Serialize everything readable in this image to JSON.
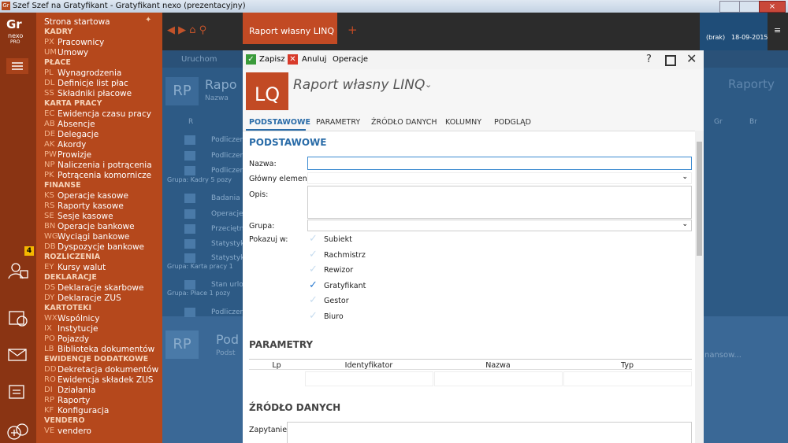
{
  "window": {
    "title": "Szef Szef na Gratyfikant - Gratyfikant nexo (prezentacyjny)"
  },
  "logo": {
    "code": "Gr",
    "brand": "nexo",
    "edition": "PRO"
  },
  "notification_count": "4",
  "menu": {
    "home": "Strona startowa",
    "groups": [
      {
        "heading": "KADRY",
        "items": [
          {
            "code": "PX",
            "label": "Pracownicy"
          },
          {
            "code": "UM",
            "label": "Umowy"
          }
        ]
      },
      {
        "heading": "PŁACE",
        "items": [
          {
            "code": "PL",
            "label": "Wynagrodzenia"
          },
          {
            "code": "DL",
            "label": "Definicje list płac"
          },
          {
            "code": "SS",
            "label": "Składniki płacowe"
          }
        ]
      },
      {
        "heading": "KARTA PRACY",
        "items": [
          {
            "code": "EC",
            "label": "Ewidencja czasu pracy"
          },
          {
            "code": "AB",
            "label": "Absencje"
          },
          {
            "code": "DE",
            "label": "Delegacje"
          },
          {
            "code": "AK",
            "label": "Akordy"
          },
          {
            "code": "PW",
            "label": "Prowizje"
          },
          {
            "code": "NP",
            "label": "Naliczenia i potrącenia"
          },
          {
            "code": "PK",
            "label": "Potrącenia komornicze"
          }
        ]
      },
      {
        "heading": "FINANSE",
        "items": [
          {
            "code": "KS",
            "label": "Operacje kasowe"
          },
          {
            "code": "RS",
            "label": "Raporty kasowe"
          },
          {
            "code": "SE",
            "label": "Sesje kasowe"
          },
          {
            "code": "BN",
            "label": "Operacje bankowe"
          },
          {
            "code": "WG",
            "label": "Wyciągi bankowe"
          },
          {
            "code": "DB",
            "label": "Dyspozycje bankowe"
          }
        ]
      },
      {
        "heading": "ROZLICZENIA",
        "items": [
          {
            "code": "EY",
            "label": "Kursy walut"
          }
        ]
      },
      {
        "heading": "DEKLARACJE",
        "items": [
          {
            "code": "DS",
            "label": "Deklaracje skarbowe"
          },
          {
            "code": "DY",
            "label": "Deklaracje ZUS"
          }
        ]
      },
      {
        "heading": "KARTOTEKI",
        "items": [
          {
            "code": "WX",
            "label": "Wspólnicy"
          },
          {
            "code": "IX",
            "label": "Instytucje"
          },
          {
            "code": "PO",
            "label": "Pojazdy"
          },
          {
            "code": "LB",
            "label": "Biblioteka dokumentów"
          }
        ]
      },
      {
        "heading": "EWIDENCJE DODATKOWE",
        "items": [
          {
            "code": "DD",
            "label": "Dekretacja dokumentów"
          },
          {
            "code": "RO",
            "label": "Ewidencja składek ZUS"
          },
          {
            "code": "DI",
            "label": "Działania"
          },
          {
            "code": "RP",
            "label": "Raporty"
          },
          {
            "code": "KF",
            "label": "Konfiguracja"
          }
        ]
      },
      {
        "heading": "VENDERO",
        "items": [
          {
            "code": "VE",
            "label": "vendero"
          }
        ]
      }
    ]
  },
  "tab": "Raport własny LINQ",
  "status": {
    "user": "(brak)",
    "date": "18-09-2015"
  },
  "background": {
    "run": "Uruchom",
    "badge": "RP",
    "title": "Rapo",
    "subtitle": "Nazwa",
    "right_title": "Raporty",
    "column": "R",
    "columns_right": [
      "Gr",
      "Br"
    ],
    "rows": [
      "Podliczen",
      "Podliczen",
      "Podliczen",
      "Grupa: Kadry 5 pozy",
      "Badania p",
      "Operacje",
      "Przeciętn",
      "Statystyk",
      "Statystyk",
      "Grupa: Karta pracy 1",
      "Stan urlop",
      "Grupa: Płace 1 pozy",
      "Podliczen"
    ],
    "lower_badge": "RP",
    "lower_title": "Pod",
    "lower_subtitle": "Podst",
    "lower_right": "nansow..."
  },
  "dialog": {
    "toolbar": {
      "save": "Zapisz",
      "cancel": "Anuluj",
      "operations": "Operacje",
      "help": "?"
    },
    "badge": "LQ",
    "title": "Raport własny LINQ",
    "tabs": [
      "PODSTAWOWE",
      "PARAMETRY",
      "ŹRÓDŁO DANYCH",
      "KOLUMNY",
      "PODGLĄD"
    ],
    "section_basic": "PODSTAWOWE",
    "fields": {
      "name": "Nazwa:",
      "main_element": "Główny element:",
      "description": "Opis:",
      "group": "Grupa:",
      "show_in": "Pokazuj w:"
    },
    "show_in": [
      {
        "label": "Subiekt",
        "checked": false
      },
      {
        "label": "Rachmistrz",
        "checked": false
      },
      {
        "label": "Rewizor",
        "checked": false
      },
      {
        "label": "Gratyfikant",
        "checked": true
      },
      {
        "label": "Gestor",
        "checked": false
      },
      {
        "label": "Biuro",
        "checked": false
      }
    ],
    "section_params": "PARAMETRY",
    "params_columns": [
      "Lp",
      "Identyfikator",
      "Nazwa",
      "Typ"
    ],
    "section_source": "ŹRÓDŁO DANYCH",
    "query": "Zapytanie:"
  }
}
